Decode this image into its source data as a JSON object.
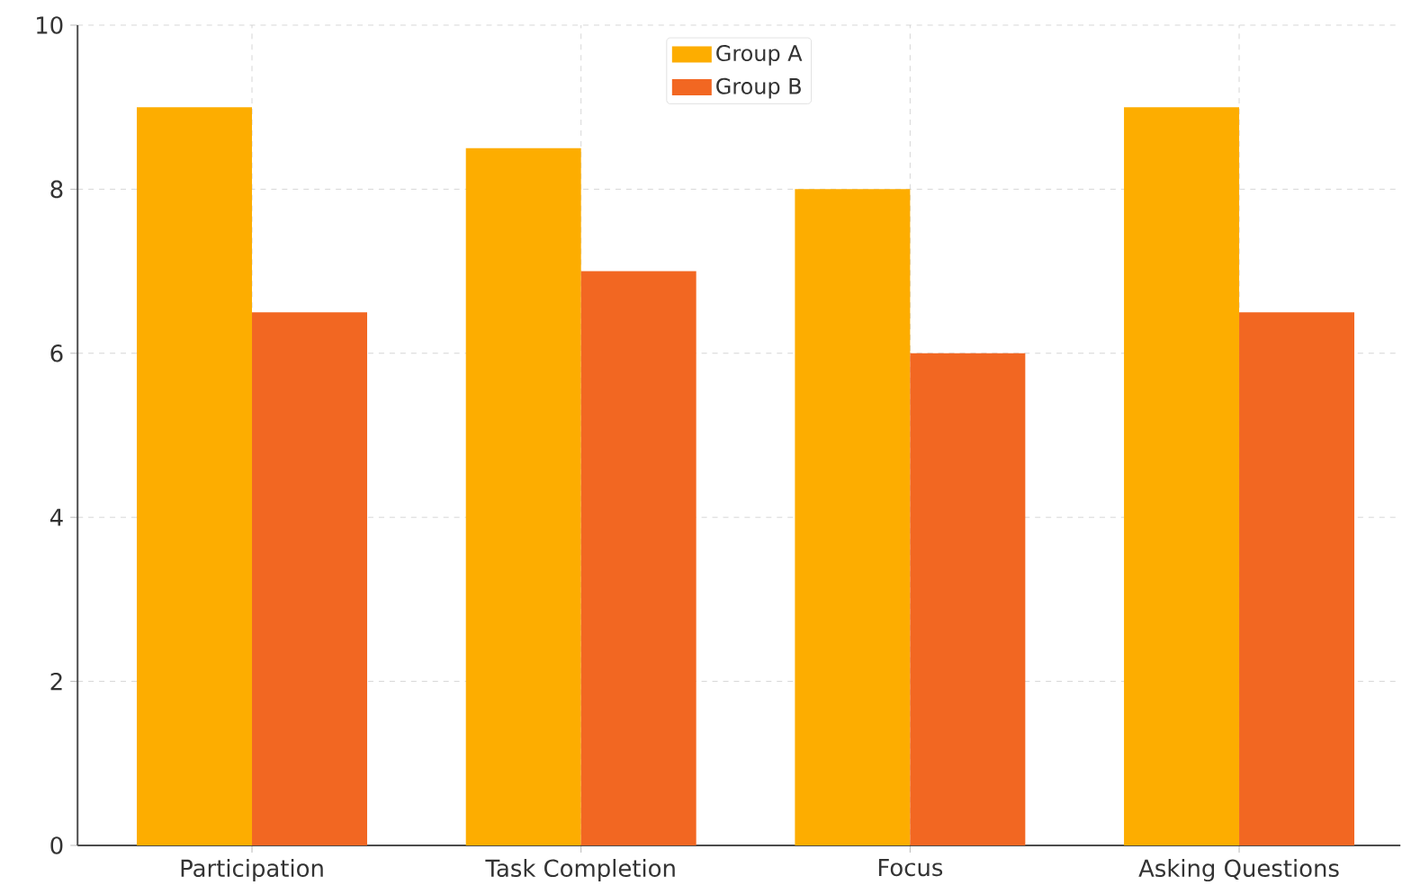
{
  "chart_data": {
    "type": "bar",
    "categories": [
      "Participation",
      "Task Completion",
      "Focus",
      "Asking Questions"
    ],
    "series": [
      {
        "name": "Group A",
        "color": "#fdad00",
        "values": [
          9,
          8.5,
          8,
          9
        ]
      },
      {
        "name": "Group B",
        "color": "#f26722",
        "values": [
          6.5,
          7,
          6,
          6.5
        ]
      }
    ],
    "ylim": [
      0,
      10
    ],
    "yticks": [
      0,
      2,
      4,
      6,
      8,
      10
    ],
    "grid": true,
    "legend": "top"
  }
}
